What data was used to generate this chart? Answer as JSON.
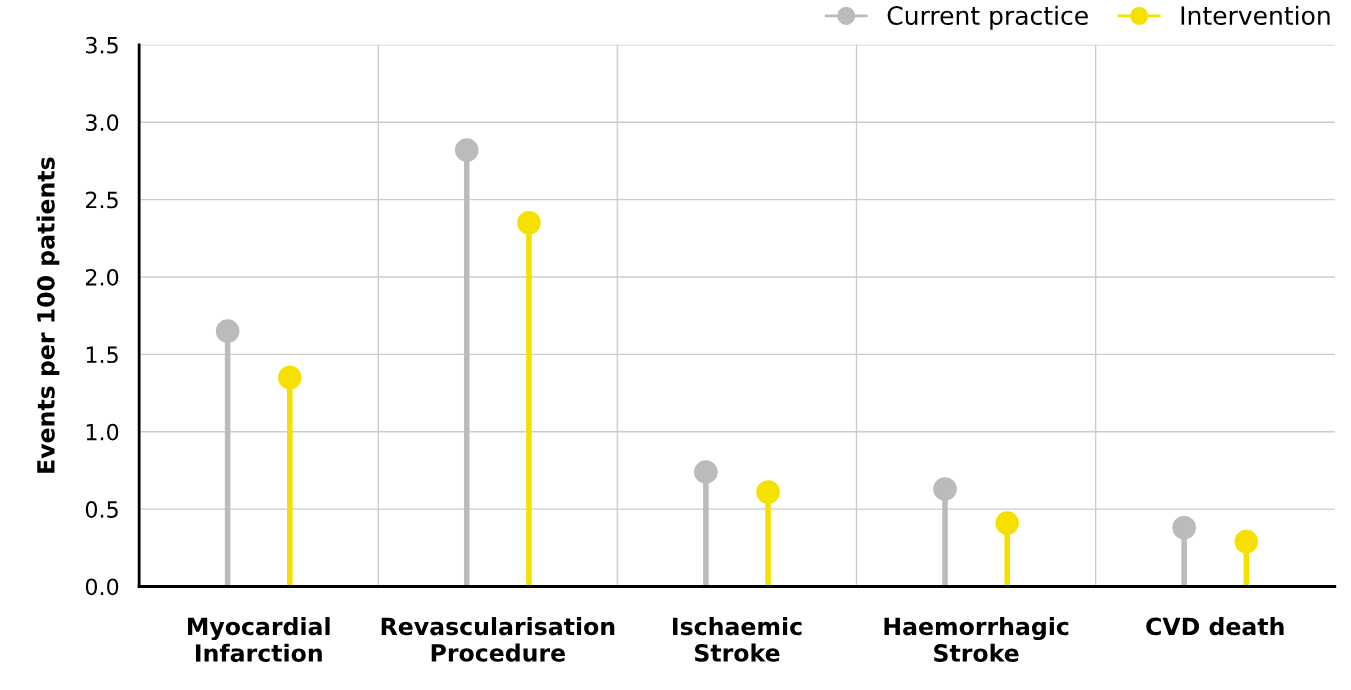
{
  "chart_data": {
    "type": "lollipop",
    "ylabel": "Events per 100 patients",
    "categories": [
      "Myocardial\nInfarction",
      "Revascularisation\nProcedure",
      "Ischaemic\nStroke",
      "Haemorrhagic\nStroke",
      "CVD death"
    ],
    "series": [
      {
        "name": "Current practice",
        "color": "#bbbbbb",
        "values": [
          1.65,
          2.82,
          0.74,
          0.63,
          0.38
        ]
      },
      {
        "name": "Intervention",
        "color": "#f5e000",
        "values": [
          1.35,
          2.35,
          0.61,
          0.41,
          0.29
        ]
      }
    ],
    "ylim": [
      0,
      3.5
    ],
    "yticks": [
      {
        "value": 0,
        "label": "0.0"
      },
      0.5,
      {
        "value": 1,
        "label": "1.0"
      },
      1.5,
      {
        "value": 2,
        "label": "2.0"
      },
      2.5,
      {
        "value": 3,
        "label": "3.0"
      },
      3.5
    ],
    "grid": true,
    "legend": "top right",
    "marker": "circle"
  }
}
